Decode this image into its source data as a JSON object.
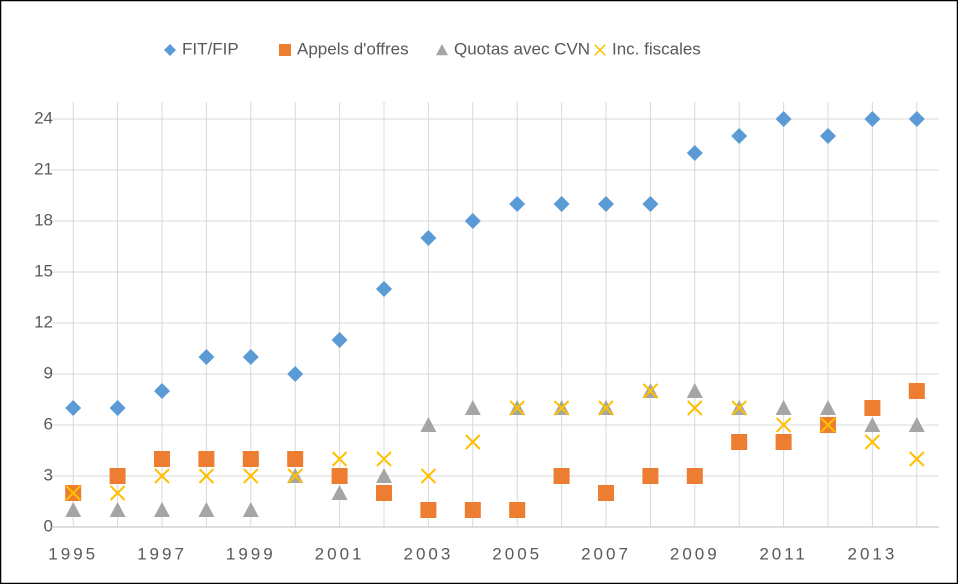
{
  "chart_data": {
    "type": "scatter",
    "categories": [
      "1995",
      null,
      "1997",
      null,
      "1999",
      null,
      "2001",
      null,
      "2003",
      null,
      "2005",
      null,
      "2007",
      null,
      "2009",
      null,
      "2011",
      null,
      "2013",
      null
    ],
    "series": [
      {
        "name": "FIT/FIP",
        "color": "#5b9bd5",
        "marker": "diamond",
        "values": [
          7,
          7,
          8,
          10,
          10,
          9,
          11,
          14,
          17,
          18,
          19,
          19,
          19,
          19,
          22,
          23,
          24,
          23,
          24,
          24
        ]
      },
      {
        "name": "Appels d'offres",
        "color": "#ed7d31",
        "marker": "square",
        "values": [
          2,
          3,
          4,
          4,
          4,
          4,
          3,
          2,
          1,
          1,
          1,
          3,
          2,
          3,
          3,
          5,
          5,
          6,
          7,
          8
        ]
      },
      {
        "name": "Quotas avec CVN",
        "color": "#a5a5a5",
        "marker": "triangle",
        "values": [
          1,
          1,
          1,
          1,
          1,
          3,
          2,
          3,
          6,
          7,
          7,
          7,
          7,
          8,
          8,
          7,
          7,
          7,
          6,
          6
        ]
      },
      {
        "name": "Inc. fiscales",
        "color": "#ffc000",
        "marker": "x",
        "values": [
          2,
          2,
          3,
          3,
          3,
          3,
          4,
          4,
          3,
          5,
          7,
          7,
          7,
          8,
          7,
          7,
          6,
          6,
          5,
          4
        ]
      }
    ],
    "ylim": [
      0,
      25
    ],
    "yticks": [
      0,
      3,
      6,
      9,
      12,
      15,
      18,
      21,
      24
    ],
    "grid": true,
    "legend": "top"
  }
}
